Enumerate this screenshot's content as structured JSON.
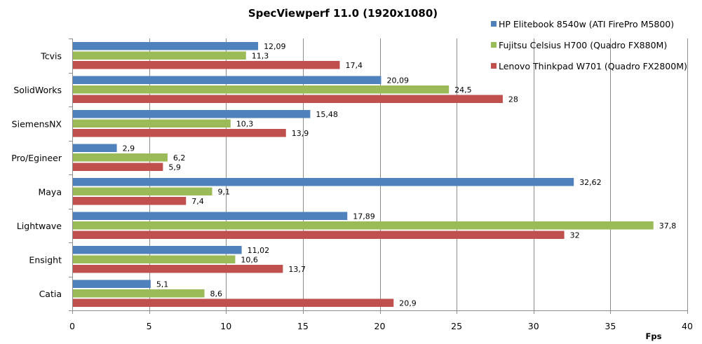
{
  "chart_data": {
    "type": "bar",
    "orientation": "horizontal",
    "title": "SpecViewperf 11.0 (1920x1080)",
    "xlabel": "Fps",
    "ylabel": "",
    "xlim": [
      0,
      40
    ],
    "x_ticks": [
      0,
      5,
      10,
      15,
      20,
      25,
      30,
      35,
      40
    ],
    "x_tick_labels": [
      "0",
      "5",
      "10",
      "15",
      "20",
      "25",
      "30",
      "35",
      "40"
    ],
    "grid": "vertical",
    "legend_position": "top-right",
    "categories": [
      "Tcvis",
      "SolidWorks",
      "SiemensNX",
      "Pro/Egineer",
      "Maya",
      "Lightwave",
      "Ensight",
      "Catia"
    ],
    "series": [
      {
        "name": "HP Elitebook 8540w (ATI FirePro M5800)",
        "color": "#4f81bd",
        "values": [
          12.09,
          20.09,
          15.48,
          2.9,
          32.62,
          17.89,
          11.02,
          5.1
        ],
        "labels": [
          "12,09",
          "20,09",
          "15,48",
          "2,9",
          "32,62",
          "17,89",
          "11,02",
          "5,1"
        ]
      },
      {
        "name": "Fujitsu Celsius H700 (Quadro FX880M)",
        "color": "#9bbb59",
        "values": [
          11.3,
          24.5,
          10.3,
          6.2,
          9.1,
          37.8,
          10.6,
          8.6
        ],
        "labels": [
          "11,3",
          "24,5",
          "10,3",
          "6,2",
          "9,1",
          "37,8",
          "10,6",
          "8,6"
        ]
      },
      {
        "name": "Lenovo Thinkpad W701 (Quadro FX2800M)",
        "color": "#c0504d",
        "values": [
          17.4,
          28,
          13.9,
          5.9,
          7.4,
          32,
          13.7,
          20.9
        ],
        "labels": [
          "17,4",
          "28",
          "13,9",
          "5,9",
          "7,4",
          "32",
          "13,7",
          "20,9"
        ]
      }
    ]
  }
}
